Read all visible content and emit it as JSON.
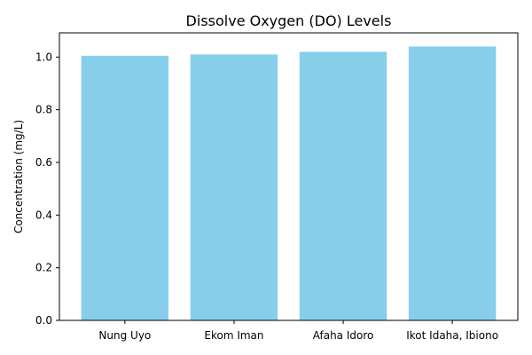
{
  "chart_data": {
    "type": "bar",
    "title": "Dissolve Oxygen (DO) Levels",
    "xlabel": "",
    "ylabel": "Concentration (mg/L)",
    "categories": [
      "Nung Uyo",
      "Ekom Iman",
      "Afaha Idoro",
      "Ikot Idaha, Ibiono"
    ],
    "values": [
      1.005,
      1.01,
      1.02,
      1.04
    ],
    "ylim": [
      0,
      1.092
    ],
    "yticks": [
      "0.0",
      "0.2",
      "0.4",
      "0.6",
      "0.8",
      "1.0"
    ],
    "grid": false,
    "bar_color": "#87ceeb"
  }
}
